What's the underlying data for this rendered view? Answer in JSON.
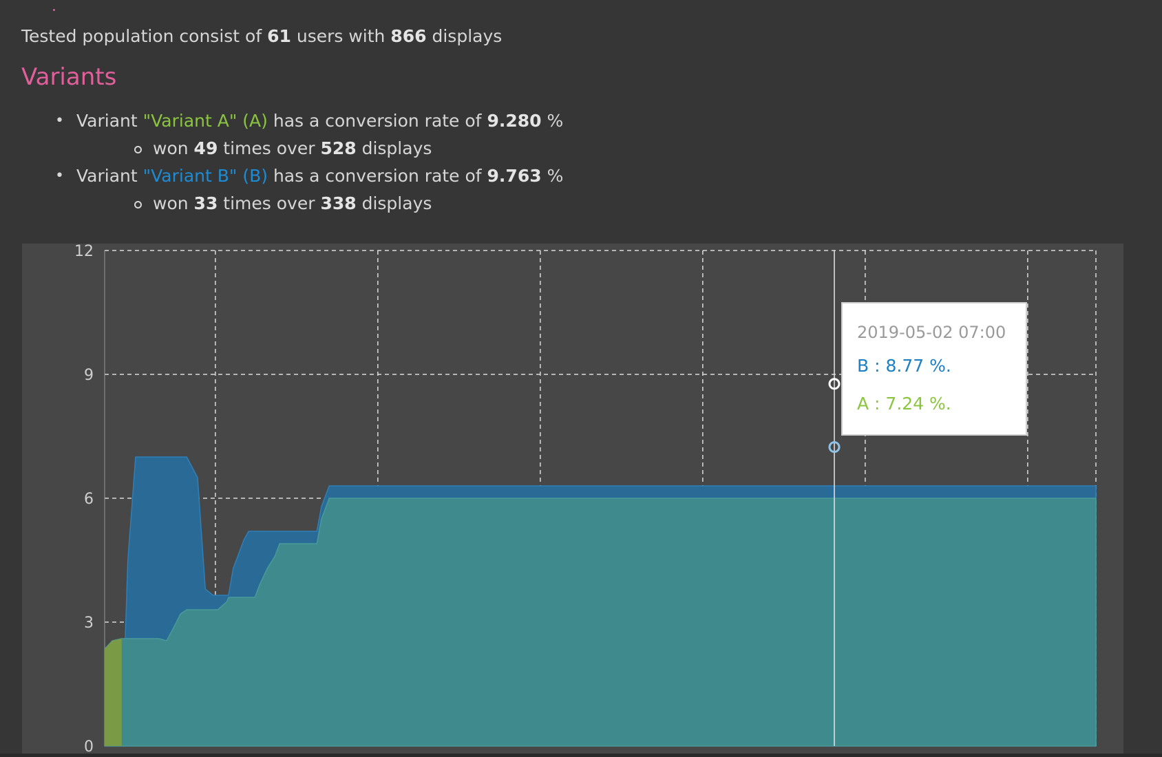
{
  "summary": {
    "prefix": "Tested population consist of",
    "users": "61",
    "users_word": "users with",
    "displays": "866",
    "displays_word": "displays"
  },
  "variants_heading": "Variants",
  "variants": [
    {
      "prefix": "Variant",
      "name": "\"Variant A\" (A)",
      "middle": "has a conversion rate of",
      "rate": "9.280",
      "pct": "%",
      "won_prefix": "won",
      "won": "49",
      "won_mid": "times over",
      "displays": "528",
      "displays_word": "displays",
      "color": "#8bc540"
    },
    {
      "prefix": "Variant",
      "name": "\"Variant B\" (B)",
      "middle": "has a conversion rate of",
      "rate": "9.763",
      "pct": "%",
      "won_prefix": "won",
      "won": "33",
      "won_mid": "times over",
      "displays": "338",
      "displays_word": "displays",
      "color": "#1d8cd4"
    }
  ],
  "tooltip": {
    "time": "2019-05-02 07:00",
    "b_label": "B : 8.77 %.",
    "a_label": "A : 7.24 %."
  },
  "chart_data": {
    "type": "area",
    "ylim": [
      0,
      12
    ],
    "yticks": [
      "0",
      "3",
      "6",
      "9",
      "12"
    ],
    "grid": true,
    "x": [
      0,
      0.5,
      1.1,
      1.5,
      2,
      2.4,
      2.8,
      3.1,
      3.5,
      4,
      4.5,
      4.9,
      5.3,
      6,
      6.5,
      7,
      7.3,
      7.9,
      8,
      8.3,
      9,
      9.3,
      9.7,
      10,
      10.5,
      11,
      11.3,
      12.5,
      13.7,
      14,
      14.5,
      15,
      15.3,
      15.6,
      16,
      16.4,
      16.8,
      17.3,
      18,
      18.3,
      19,
      20,
      21,
      22,
      23,
      24,
      25,
      26,
      27,
      28,
      29,
      30,
      31,
      32,
      33,
      33.7,
      34.3,
      34.9,
      35.4,
      35.9,
      36.5,
      37.1,
      37.6,
      38,
      38.6,
      39.2,
      39.7,
      40.2,
      40.9,
      41.4,
      41.7,
      42.1,
      42.6,
      43,
      43.5,
      44,
      44.5,
      45,
      46,
      47,
      48,
      49,
      50,
      51,
      52,
      53,
      54,
      54.5,
      55,
      56,
      57,
      58,
      59,
      60,
      61,
      62,
      63,
      64
    ],
    "series": [
      {
        "name": "A",
        "color": "#8bc540",
        "values": [
          2.35,
          2.55,
          2.6,
          2.6,
          2.6,
          2.6,
          2.6,
          2.6,
          2.6,
          2.55,
          2.9,
          3.2,
          3.3,
          3.3,
          3.3,
          3.3,
          3.3,
          3.5,
          3.6,
          3.6,
          3.6,
          3.6,
          3.6,
          3.9,
          4.3,
          4.6,
          4.9,
          4.9,
          4.9,
          5.5,
          6.0,
          6.0,
          6.0,
          6.0,
          6.0,
          6.0,
          6.0,
          6.0,
          6.0,
          6.0,
          6.0,
          6.0,
          6.0,
          6.0,
          6.0,
          6.0,
          6.0,
          6.0,
          6.0,
          6.0,
          6.0,
          6.0,
          6.0,
          6.0,
          6.0,
          6.0,
          6.0,
          6.0,
          6.0,
          6.0,
          6.0,
          6.0,
          6.0,
          6.0,
          6.0,
          6.0,
          6.0,
          6.0,
          6.0,
          6.0,
          6.0,
          6.0,
          6.0,
          6.0,
          6.0,
          6.0,
          6.0,
          6.0,
          6.0,
          6.0,
          6.0,
          6.0,
          6.0,
          6.0,
          6.0,
          6.0,
          6.0,
          6.0,
          6.0,
          6.0,
          6.0,
          6.0,
          6.0,
          6.0,
          6.0,
          6.0,
          6.0,
          6.0
        ]
      },
      {
        "name": "B",
        "color": "#1d8cd4",
        "values": [
          0,
          0,
          0,
          4.5,
          7.0,
          7.0,
          7.0,
          7.0,
          7.0,
          7.0,
          7.0,
          7.0,
          7.0,
          6.5,
          3.8,
          3.65,
          3.65,
          3.65,
          3.65,
          4.3,
          5.0,
          5.2,
          5.2,
          5.2,
          5.2,
          5.2,
          5.2,
          5.2,
          5.2,
          5.8,
          6.3,
          6.3,
          6.3,
          6.3,
          6.3,
          6.3,
          6.3,
          6.3,
          6.3,
          6.3,
          6.3,
          6.3,
          6.3,
          6.3,
          6.3,
          6.3,
          6.3,
          6.3,
          6.3,
          6.3,
          6.3,
          6.3,
          6.3,
          6.3,
          6.3,
          6.3,
          6.3,
          6.3,
          6.3,
          6.3,
          6.3,
          6.3,
          6.3,
          6.3,
          6.3,
          6.3,
          6.3,
          6.3,
          6.3,
          6.3,
          6.3,
          6.3,
          6.3,
          6.3,
          6.3,
          6.3,
          6.3,
          6.3,
          6.3,
          6.3,
          6.3,
          6.3,
          6.3,
          6.3,
          6.3,
          6.3,
          6.3,
          6.3,
          6.3,
          6.3,
          6.3,
          6.3,
          6.3,
          6.3,
          6.3,
          6.3,
          6.3,
          6.3
        ]
      }
    ]
  }
}
